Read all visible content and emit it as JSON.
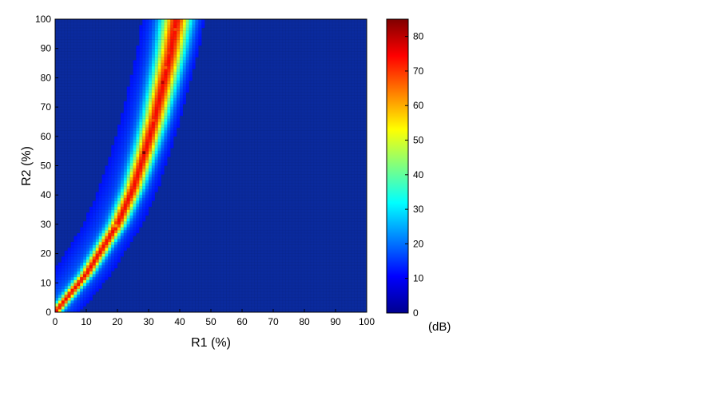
{
  "chart_data": {
    "type": "heatmap",
    "xlabel": "R1 (%)",
    "ylabel": "R2 (%)",
    "xlim": [
      0,
      100
    ],
    "ylim": [
      0,
      100
    ],
    "x_ticks": [
      "0",
      "10",
      "20",
      "30",
      "40",
      "50",
      "60",
      "70",
      "80",
      "90",
      "100"
    ],
    "y_ticks": [
      "0",
      "10",
      "20",
      "30",
      "40",
      "50",
      "60",
      "70",
      "80",
      "90",
      "100"
    ],
    "grid_resolution": 100,
    "colormap": "jet",
    "colorbar": {
      "label": "(dB)",
      "range": [
        0,
        85
      ],
      "ticks": [
        "0",
        "10",
        "20",
        "30",
        "40",
        "50",
        "60",
        "70",
        "80"
      ]
    },
    "ridge_curve": {
      "description_points": [
        {
          "x": 0,
          "y": 0
        },
        {
          "x": 10,
          "y": 13
        },
        {
          "x": 20,
          "y": 30
        },
        {
          "x": 25,
          "y": 42
        },
        {
          "x": 29,
          "y": 55
        },
        {
          "x": 32,
          "y": 66
        },
        {
          "x": 35,
          "y": 79
        },
        {
          "x": 37,
          "y": 88
        },
        {
          "x": 39,
          "y": 100
        }
      ],
      "peak_value_db": 85,
      "ridge_level_db": 50
    },
    "hot_spots": [
      {
        "x": 28.5,
        "y": 54.5,
        "value": 85
      },
      {
        "x": 34.5,
        "y": 78.5,
        "value": 80
      },
      {
        "x": 31.5,
        "y": 65.5,
        "value": 68
      },
      {
        "x": 36.5,
        "y": 88.5,
        "value": 70
      },
      {
        "x": 35.5,
        "y": 83.5,
        "value": 66
      },
      {
        "x": 38.5,
        "y": 96.5,
        "value": 68
      },
      {
        "x": 19.5,
        "y": 29.5,
        "value": 62
      }
    ]
  }
}
